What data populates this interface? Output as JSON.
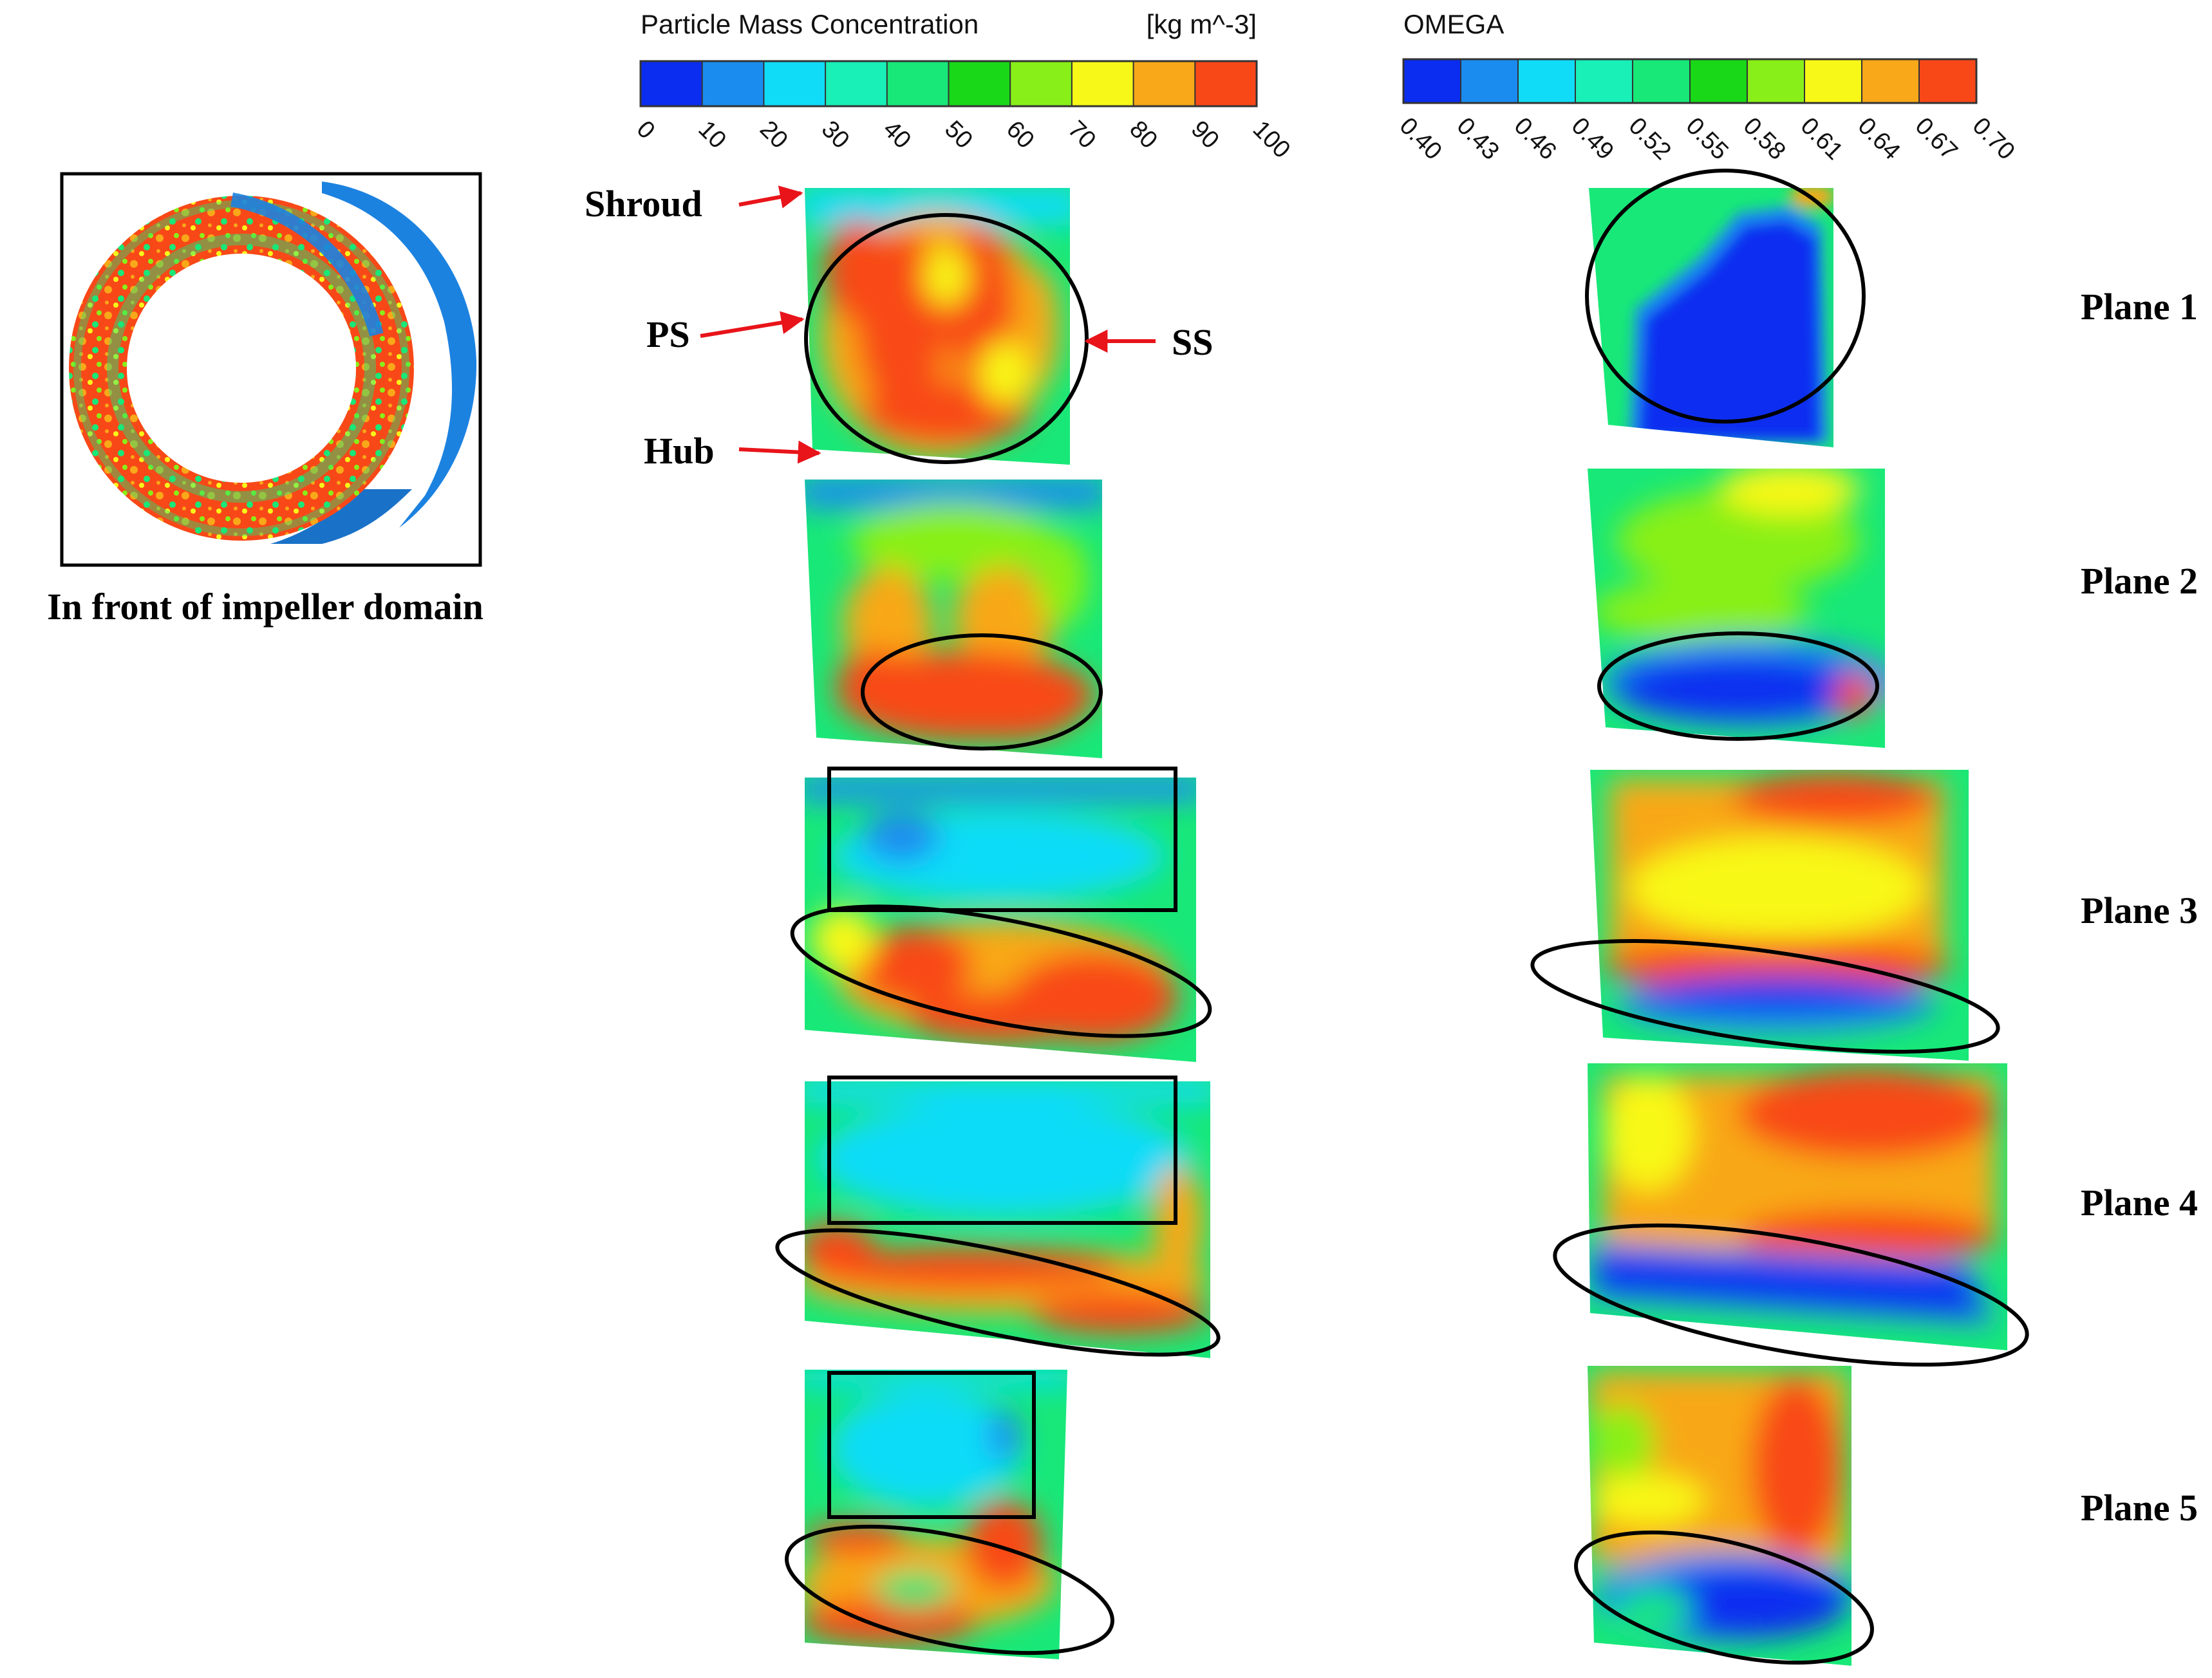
{
  "inset": {
    "caption": "In front of impeller domain"
  },
  "colorbar_concentration": {
    "title": "Particle Mass Concentration",
    "unit": "[kg m^-3]",
    "ticks": [
      "0",
      "10",
      "20",
      "30",
      "40",
      "50",
      "60",
      "70",
      "80",
      "90",
      "100"
    ],
    "colors": [
      "#0a2df0",
      "#1a8cf0",
      "#10dcf8",
      "#18f0b8",
      "#18e878",
      "#18d818",
      "#88f018",
      "#f8f818",
      "#f8a818",
      "#f84818"
    ]
  },
  "colorbar_omega": {
    "title": "OMEGA",
    "ticks": [
      "0.40",
      "0.43",
      "0.46",
      "0.49",
      "0.52",
      "0.55",
      "0.58",
      "0.61",
      "0.64",
      "0.67",
      "0.70"
    ],
    "colors": [
      "#0a2df0",
      "#1a8cf0",
      "#10dcf8",
      "#18f0b8",
      "#18e878",
      "#18d818",
      "#88f018",
      "#f8f818",
      "#f8a818",
      "#f84818"
    ]
  },
  "side_labels": {
    "shroud": "Shroud",
    "ps": "PS",
    "ss": "SS",
    "hub": "Hub"
  },
  "planes": [
    {
      "label": "Plane 1"
    },
    {
      "label": "Plane 2"
    },
    {
      "label": "Plane 3"
    },
    {
      "label": "Plane 4"
    },
    {
      "label": "Plane 5"
    }
  ],
  "colors": {
    "arrow": "#e8141a",
    "annotation": "#000000",
    "blade": "#1c82e0"
  }
}
